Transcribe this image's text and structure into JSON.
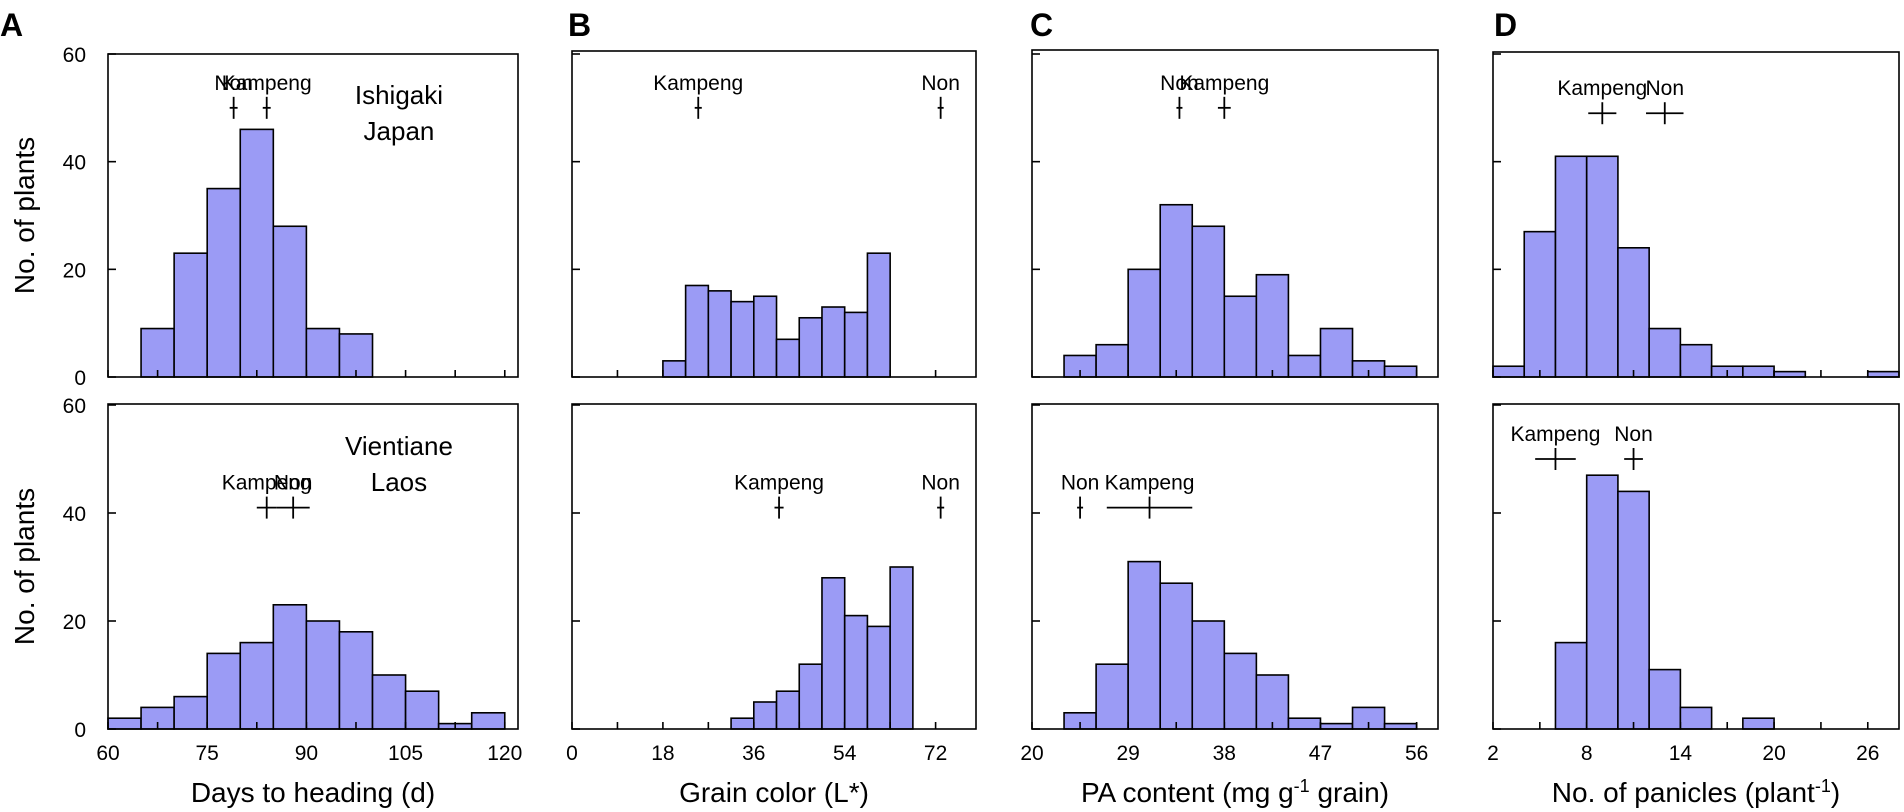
{
  "style": {
    "bar_fill": "#9b9bf5",
    "bar_stroke": "#000000",
    "frame_stroke": "#000000"
  },
  "chart_data": [
    {
      "type": "bar",
      "panel_letter": "A",
      "xlabel": "Days to heading (d)",
      "ylabel": "No. of plants",
      "xlim": [
        60,
        122
      ],
      "xticks": [
        60,
        75,
        90,
        105,
        120
      ],
      "ylim": [
        0,
        60
      ],
      "yticks": [
        0,
        20,
        40,
        60
      ],
      "bin_width": 5,
      "bins": {
        "top": [
          {
            "x": 65,
            "count": 9
          },
          {
            "x": 70,
            "count": 23
          },
          {
            "x": 75,
            "count": 35
          },
          {
            "x": 80,
            "count": 46
          },
          {
            "x": 85,
            "count": 28
          },
          {
            "x": 90,
            "count": 9
          },
          {
            "x": 95,
            "count": 8
          }
        ],
        "bottom": [
          {
            "x": 60,
            "count": 2
          },
          {
            "x": 65,
            "count": 4
          },
          {
            "x": 70,
            "count": 6
          },
          {
            "x": 75,
            "count": 14
          },
          {
            "x": 80,
            "count": 16
          },
          {
            "x": 85,
            "count": 23
          },
          {
            "x": 90,
            "count": 20
          },
          {
            "x": 95,
            "count": 18
          },
          {
            "x": 100,
            "count": 10
          },
          {
            "x": 105,
            "count": 7
          },
          {
            "x": 110,
            "count": 1
          },
          {
            "x": 115,
            "count": 3
          }
        ]
      },
      "markers": {
        "top": [
          {
            "label": "Non",
            "mean": 79,
            "sd": 0.6,
            "y": 50
          },
          {
            "label": "Kampeng",
            "mean": 84,
            "sd": 0.6,
            "y": 50
          }
        ],
        "bottom": [
          {
            "label": "Kampeng",
            "mean": 84,
            "sd": 1.5,
            "y": 41
          },
          {
            "label": "Non",
            "mean": 88,
            "sd": 2.5,
            "y": 41
          }
        ]
      },
      "locations": {
        "top": [
          "Ishigaki",
          "Japan"
        ],
        "bottom": [
          "Vientiane",
          "Laos"
        ]
      }
    },
    {
      "type": "bar",
      "panel_letter": "B",
      "xlabel": "Grain color (L*)",
      "ylabel": "",
      "xlim": [
        0,
        80
      ],
      "xticks": [
        0,
        18,
        36,
        54,
        72
      ],
      "ylim": [
        0,
        60
      ],
      "yticks": [
        0,
        20,
        40,
        60
      ],
      "bin_width": 4.5,
      "bins": {
        "top": [
          {
            "x": 18,
            "count": 3
          },
          {
            "x": 22.5,
            "count": 17
          },
          {
            "x": 27,
            "count": 16
          },
          {
            "x": 31.5,
            "count": 14
          },
          {
            "x": 36,
            "count": 15
          },
          {
            "x": 40.5,
            "count": 7
          },
          {
            "x": 45,
            "count": 11
          },
          {
            "x": 49.5,
            "count": 13
          },
          {
            "x": 54,
            "count": 12
          },
          {
            "x": 58.5,
            "count": 23
          }
        ],
        "bottom": [
          {
            "x": 31.5,
            "count": 2
          },
          {
            "x": 36,
            "count": 5
          },
          {
            "x": 40.5,
            "count": 7
          },
          {
            "x": 45,
            "count": 12
          },
          {
            "x": 49.5,
            "count": 28
          },
          {
            "x": 54,
            "count": 21
          },
          {
            "x": 58.5,
            "count": 19
          },
          {
            "x": 63,
            "count": 30
          }
        ]
      },
      "markers": {
        "top": [
          {
            "label": "Kampeng",
            "mean": 25,
            "sd": 0.7,
            "y": 50
          },
          {
            "label": "Non",
            "mean": 73,
            "sd": 0.4,
            "y": 50
          }
        ],
        "bottom": [
          {
            "label": "Kampeng",
            "mean": 41,
            "sd": 0.9,
            "y": 41
          },
          {
            "label": "Non",
            "mean": 73,
            "sd": 0.7,
            "y": 41
          }
        ]
      },
      "locations": {}
    },
    {
      "type": "bar",
      "panel_letter": "C",
      "xlabel": "PA content (mg g",
      "xlabel_sup": "-1",
      "xlabel_tail": " grain)",
      "ylabel": "",
      "xlim": [
        20,
        58
      ],
      "xticks": [
        20,
        29,
        38,
        47,
        56
      ],
      "ylim": [
        0,
        60
      ],
      "yticks": [
        0,
        20,
        40,
        60
      ],
      "bin_width": 3,
      "bins": {
        "top": [
          {
            "x": 23,
            "count": 4
          },
          {
            "x": 26,
            "count": 6
          },
          {
            "x": 29,
            "count": 20
          },
          {
            "x": 32,
            "count": 32
          },
          {
            "x": 35,
            "count": 28
          },
          {
            "x": 38,
            "count": 15
          },
          {
            "x": 41,
            "count": 19
          },
          {
            "x": 44,
            "count": 4
          },
          {
            "x": 47,
            "count": 9
          },
          {
            "x": 50,
            "count": 3
          },
          {
            "x": 53,
            "count": 2
          }
        ],
        "bottom": [
          {
            "x": 23,
            "count": 3
          },
          {
            "x": 26,
            "count": 12
          },
          {
            "x": 29,
            "count": 31
          },
          {
            "x": 32,
            "count": 27
          },
          {
            "x": 35,
            "count": 20
          },
          {
            "x": 38,
            "count": 14
          },
          {
            "x": 41,
            "count": 10
          },
          {
            "x": 44,
            "count": 2
          },
          {
            "x": 47,
            "count": 1
          },
          {
            "x": 50,
            "count": 4
          },
          {
            "x": 53,
            "count": 1
          }
        ]
      },
      "markers": {
        "top": [
          {
            "label": "Non",
            "mean": 33.8,
            "sd": 0.15,
            "y": 50
          },
          {
            "label": "Kampeng",
            "mean": 38,
            "sd": 0.6,
            "y": 50
          }
        ],
        "bottom": [
          {
            "label": "Non",
            "mean": 24.5,
            "sd": 0.15,
            "y": 41
          },
          {
            "label": "Kampeng",
            "mean": 31,
            "sd": 4,
            "y": 41
          }
        ]
      },
      "locations": {}
    },
    {
      "type": "bar",
      "panel_letter": "D",
      "xlabel": "No. of panicles (plant",
      "xlabel_sup": "-1",
      "xlabel_tail": ")",
      "ylabel": "",
      "xlim": [
        2,
        28
      ],
      "xticks": [
        2,
        8,
        14,
        20,
        26
      ],
      "ylim": [
        0,
        60
      ],
      "yticks": [
        0,
        20,
        40,
        60
      ],
      "bin_width": 2,
      "bins": {
        "top": [
          {
            "x": 2,
            "count": 2
          },
          {
            "x": 4,
            "count": 27
          },
          {
            "x": 6,
            "count": 41
          },
          {
            "x": 8,
            "count": 41
          },
          {
            "x": 10,
            "count": 24
          },
          {
            "x": 12,
            "count": 9
          },
          {
            "x": 14,
            "count": 6
          },
          {
            "x": 16,
            "count": 2
          },
          {
            "x": 18,
            "count": 2
          },
          {
            "x": 20,
            "count": 1
          },
          {
            "x": 26,
            "count": 1
          }
        ],
        "bottom": [
          {
            "x": 6,
            "count": 16
          },
          {
            "x": 8,
            "count": 47
          },
          {
            "x": 10,
            "count": 44
          },
          {
            "x": 12,
            "count": 11
          },
          {
            "x": 14,
            "count": 4
          },
          {
            "x": 18,
            "count": 2
          }
        ]
      },
      "markers": {
        "top": [
          {
            "label": "Kampeng",
            "mean": 9,
            "sd": 0.9,
            "y": 49
          },
          {
            "label": "Non",
            "mean": 13,
            "sd": 1.2,
            "y": 49
          }
        ],
        "bottom": [
          {
            "label": "Kampeng",
            "mean": 6,
            "sd": 1.3,
            "y": 50
          },
          {
            "label": "Non",
            "mean": 11,
            "sd": 0.6,
            "y": 50
          }
        ]
      },
      "locations": {}
    }
  ]
}
